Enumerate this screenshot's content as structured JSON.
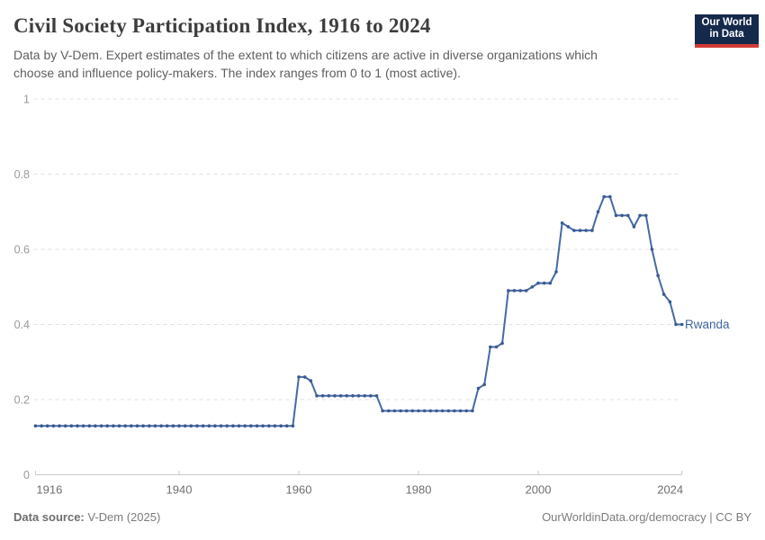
{
  "header": {
    "title": "Civil Society Participation Index, 1916 to 2024",
    "subtitle_line1": "Data by V-Dem. Expert estimates of the extent to which citizens are active in diverse organizations which",
    "subtitle_line2": "choose and influence policy-makers. The index ranges from 0 to 1 (most active).",
    "logo": {
      "line1": "Our World",
      "line2": "in Data"
    }
  },
  "footer": {
    "source_label": "Data source:",
    "source_value": "V-Dem (2025)",
    "url": "OurWorldinData.org/democracy",
    "separator": "|",
    "license": "CC BY"
  },
  "colors": {
    "line": "#466aa4",
    "dot": "#3a5a94",
    "entity_label": "#3d639e",
    "grid": "#e0e0e0",
    "axis": "#c9c9c9",
    "logo_bg": "#15294b",
    "logo_red": "#d13b32"
  },
  "chart_data": {
    "type": "line",
    "title": "Civil Society Participation Index, 1916 to 2024",
    "entity": "Rwanda",
    "end_label": "Rwanda",
    "xlabel": "",
    "ylabel": "",
    "x_range": [
      1916,
      2024
    ],
    "y_range": [
      0,
      1
    ],
    "grid": "dashed horizontal gridlines",
    "legend_position": "end-of-line label",
    "x_ticks": [
      1916,
      1940,
      1960,
      1980,
      2000,
      2024
    ],
    "y_ticks": [
      0,
      0.2,
      0.4,
      0.6,
      0.8,
      1
    ],
    "y_tick_labels": [
      "0",
      "0.2",
      "0.4",
      "0.6",
      "0.8",
      "1"
    ],
    "x_tick_labels": [
      "1916",
      "1940",
      "1960",
      "1980",
      "2000",
      "2024"
    ],
    "series": [
      {
        "name": "Rwanda",
        "start_year": 1916,
        "values": [
          0.13,
          0.13,
          0.13,
          0.13,
          0.13,
          0.13,
          0.13,
          0.13,
          0.13,
          0.13,
          0.13,
          0.13,
          0.13,
          0.13,
          0.13,
          0.13,
          0.13,
          0.13,
          0.13,
          0.13,
          0.13,
          0.13,
          0.13,
          0.13,
          0.13,
          0.13,
          0.13,
          0.13,
          0.13,
          0.13,
          0.13,
          0.13,
          0.13,
          0.13,
          0.13,
          0.13,
          0.13,
          0.13,
          0.13,
          0.13,
          0.13,
          0.13,
          0.13,
          0.13,
          0.26,
          0.26,
          0.25,
          0.21,
          0.21,
          0.21,
          0.21,
          0.21,
          0.21,
          0.21,
          0.21,
          0.21,
          0.21,
          0.21,
          0.17,
          0.17,
          0.17,
          0.17,
          0.17,
          0.17,
          0.17,
          0.17,
          0.17,
          0.17,
          0.17,
          0.17,
          0.17,
          0.17,
          0.17,
          0.17,
          0.23,
          0.24,
          0.34,
          0.34,
          0.35,
          0.49,
          0.49,
          0.49,
          0.49,
          0.5,
          0.51,
          0.51,
          0.51,
          0.54,
          0.67,
          0.66,
          0.65,
          0.65,
          0.65,
          0.65,
          0.7,
          0.74,
          0.74,
          0.69,
          0.69,
          0.69,
          0.66,
          0.69,
          0.69,
          0.6,
          0.53,
          0.48,
          0.46,
          0.4,
          0.4
        ]
      }
    ]
  }
}
